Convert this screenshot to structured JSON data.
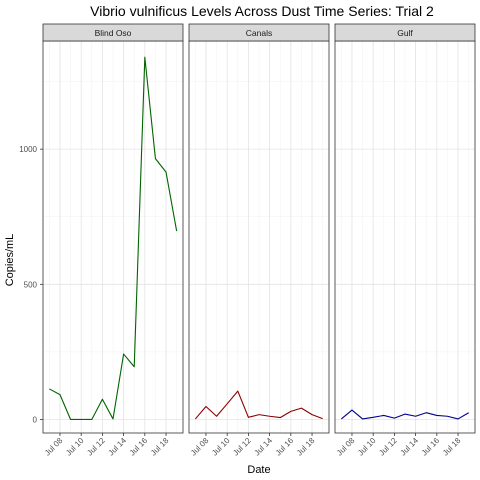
{
  "chart_data": {
    "type": "line",
    "title": "Vibrio vulnificus Levels Across Dust Time Series: Trial 2",
    "xlabel": "Date",
    "ylabel": "Copies/mL",
    "x": [
      7,
      8,
      9,
      10,
      11,
      12,
      13,
      14,
      15,
      16,
      17,
      18,
      19
    ],
    "x_tick_values": [
      8,
      10,
      12,
      14,
      16,
      18
    ],
    "x_tick_labels": [
      "Jul 08",
      "Jul 10",
      "Jul 12",
      "Jul 14",
      "Jul 16",
      "Jul 18"
    ],
    "xlim": [
      6.4,
      19.6
    ],
    "y_tick_values": [
      0,
      500,
      1000
    ],
    "y_tick_labels": [
      "0",
      "500",
      "1000"
    ],
    "ylim": [
      -50,
      1400
    ],
    "grid": true,
    "facets": [
      {
        "label": "Blind Oso",
        "color": "#006400",
        "values": [
          113,
          92,
          0,
          0,
          0,
          75,
          2,
          242,
          195,
          1340,
          965,
          915,
          697
        ]
      },
      {
        "label": "Canals",
        "color": "#8b0000",
        "values": [
          2,
          48,
          12,
          58,
          105,
          8,
          18,
          12,
          7,
          30,
          42,
          18,
          3
        ]
      },
      {
        "label": "Gulf",
        "color": "#00008b",
        "values": [
          2,
          35,
          2,
          8,
          15,
          5,
          20,
          12,
          25,
          15,
          12,
          2,
          25
        ]
      }
    ]
  }
}
